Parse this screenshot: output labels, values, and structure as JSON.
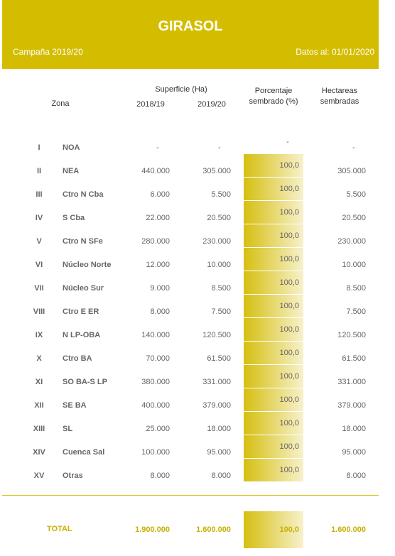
{
  "header": {
    "title": "GIRASOL",
    "campaign": "Campaña 2019/20",
    "date": "Datos al: 01/01/2020"
  },
  "table": {
    "columns": {
      "superficie": "Superficie (Ha)",
      "zona": "Zona",
      "year1": "2018/19",
      "year2": "2019/20",
      "pct": [
        "Porcentaje",
        "sembrado (%)"
      ],
      "ha": [
        "Hectareas",
        "sembradas"
      ]
    },
    "rows": [
      [
        "I",
        "NOA",
        "-",
        "-",
        "-",
        "-"
      ],
      [
        "II",
        "NEA",
        "440.000",
        "305.000",
        "100,0",
        "305.000"
      ],
      [
        "III",
        "Ctro N Cba",
        "6.000",
        "5.500",
        "100,0",
        "5.500"
      ],
      [
        "IV",
        "S Cba",
        "22.000",
        "20.500",
        "100,0",
        "20.500"
      ],
      [
        "V",
        "Ctro N SFe",
        "280.000",
        "230.000",
        "100,0",
        "230.000"
      ],
      [
        "VI",
        "Núcleo Norte",
        "12.000",
        "10.000",
        "100,0",
        "10.000"
      ],
      [
        "VII",
        "Núcleo Sur",
        "9.000",
        "8.500",
        "100,0",
        "8.500"
      ],
      [
        "VIII",
        "Ctro E ER",
        "8.000",
        "7.500",
        "100,0",
        "7.500"
      ],
      [
        "IX",
        "N LP-OBA",
        "140.000",
        "120.500",
        "100,0",
        "120.500"
      ],
      [
        "X",
        "Ctro BA",
        "70.000",
        "61.500",
        "100,0",
        "61.500"
      ],
      [
        "XI",
        "SO BA-S LP",
        "380.000",
        "331.000",
        "100,0",
        "331.000"
      ],
      [
        "XII",
        "SE BA",
        "400.000",
        "379.000",
        "100,0",
        "379.000"
      ],
      [
        "XIII",
        "SL",
        "25.000",
        "18.000",
        "100,0",
        "18.000"
      ],
      [
        "XIV",
        "Cuenca Sal",
        "100.000",
        "95.000",
        "100,0",
        "95.000"
      ],
      [
        "XV",
        "Otras",
        "8.000",
        "8.000",
        "100,0",
        "8.000"
      ]
    ],
    "total": [
      "TOTAL",
      "1.900.000",
      "1.600.000",
      "100,0",
      "1.600.000"
    ]
  }
}
